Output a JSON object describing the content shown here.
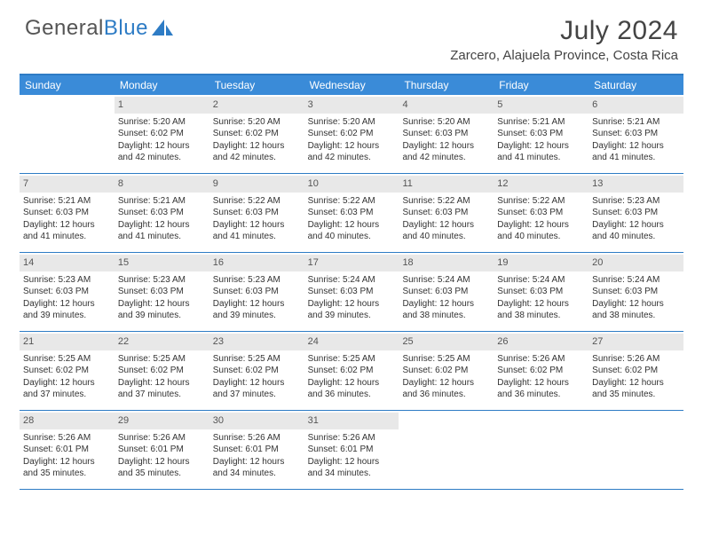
{
  "logo": {
    "text_gray": "General",
    "text_blue": "Blue"
  },
  "title": "July 2024",
  "location": "Zarcero, Alajuela Province, Costa Rica",
  "colors": {
    "header_bg": "#3a8bd8",
    "border": "#2e7cc5",
    "daynum_bg": "#e8e8e8",
    "text": "#333333",
    "title_text": "#444444"
  },
  "day_headers": [
    "Sunday",
    "Monday",
    "Tuesday",
    "Wednesday",
    "Thursday",
    "Friday",
    "Saturday"
  ],
  "weeks": [
    [
      null,
      {
        "n": "1",
        "sr": "Sunrise: 5:20 AM",
        "ss": "Sunset: 6:02 PM",
        "dl": "Daylight: 12 hours and 42 minutes."
      },
      {
        "n": "2",
        "sr": "Sunrise: 5:20 AM",
        "ss": "Sunset: 6:02 PM",
        "dl": "Daylight: 12 hours and 42 minutes."
      },
      {
        "n": "3",
        "sr": "Sunrise: 5:20 AM",
        "ss": "Sunset: 6:02 PM",
        "dl": "Daylight: 12 hours and 42 minutes."
      },
      {
        "n": "4",
        "sr": "Sunrise: 5:20 AM",
        "ss": "Sunset: 6:03 PM",
        "dl": "Daylight: 12 hours and 42 minutes."
      },
      {
        "n": "5",
        "sr": "Sunrise: 5:21 AM",
        "ss": "Sunset: 6:03 PM",
        "dl": "Daylight: 12 hours and 41 minutes."
      },
      {
        "n": "6",
        "sr": "Sunrise: 5:21 AM",
        "ss": "Sunset: 6:03 PM",
        "dl": "Daylight: 12 hours and 41 minutes."
      }
    ],
    [
      {
        "n": "7",
        "sr": "Sunrise: 5:21 AM",
        "ss": "Sunset: 6:03 PM",
        "dl": "Daylight: 12 hours and 41 minutes."
      },
      {
        "n": "8",
        "sr": "Sunrise: 5:21 AM",
        "ss": "Sunset: 6:03 PM",
        "dl": "Daylight: 12 hours and 41 minutes."
      },
      {
        "n": "9",
        "sr": "Sunrise: 5:22 AM",
        "ss": "Sunset: 6:03 PM",
        "dl": "Daylight: 12 hours and 41 minutes."
      },
      {
        "n": "10",
        "sr": "Sunrise: 5:22 AM",
        "ss": "Sunset: 6:03 PM",
        "dl": "Daylight: 12 hours and 40 minutes."
      },
      {
        "n": "11",
        "sr": "Sunrise: 5:22 AM",
        "ss": "Sunset: 6:03 PM",
        "dl": "Daylight: 12 hours and 40 minutes."
      },
      {
        "n": "12",
        "sr": "Sunrise: 5:22 AM",
        "ss": "Sunset: 6:03 PM",
        "dl": "Daylight: 12 hours and 40 minutes."
      },
      {
        "n": "13",
        "sr": "Sunrise: 5:23 AM",
        "ss": "Sunset: 6:03 PM",
        "dl": "Daylight: 12 hours and 40 minutes."
      }
    ],
    [
      {
        "n": "14",
        "sr": "Sunrise: 5:23 AM",
        "ss": "Sunset: 6:03 PM",
        "dl": "Daylight: 12 hours and 39 minutes."
      },
      {
        "n": "15",
        "sr": "Sunrise: 5:23 AM",
        "ss": "Sunset: 6:03 PM",
        "dl": "Daylight: 12 hours and 39 minutes."
      },
      {
        "n": "16",
        "sr": "Sunrise: 5:23 AM",
        "ss": "Sunset: 6:03 PM",
        "dl": "Daylight: 12 hours and 39 minutes."
      },
      {
        "n": "17",
        "sr": "Sunrise: 5:24 AM",
        "ss": "Sunset: 6:03 PM",
        "dl": "Daylight: 12 hours and 39 minutes."
      },
      {
        "n": "18",
        "sr": "Sunrise: 5:24 AM",
        "ss": "Sunset: 6:03 PM",
        "dl": "Daylight: 12 hours and 38 minutes."
      },
      {
        "n": "19",
        "sr": "Sunrise: 5:24 AM",
        "ss": "Sunset: 6:03 PM",
        "dl": "Daylight: 12 hours and 38 minutes."
      },
      {
        "n": "20",
        "sr": "Sunrise: 5:24 AM",
        "ss": "Sunset: 6:03 PM",
        "dl": "Daylight: 12 hours and 38 minutes."
      }
    ],
    [
      {
        "n": "21",
        "sr": "Sunrise: 5:25 AM",
        "ss": "Sunset: 6:02 PM",
        "dl": "Daylight: 12 hours and 37 minutes."
      },
      {
        "n": "22",
        "sr": "Sunrise: 5:25 AM",
        "ss": "Sunset: 6:02 PM",
        "dl": "Daylight: 12 hours and 37 minutes."
      },
      {
        "n": "23",
        "sr": "Sunrise: 5:25 AM",
        "ss": "Sunset: 6:02 PM",
        "dl": "Daylight: 12 hours and 37 minutes."
      },
      {
        "n": "24",
        "sr": "Sunrise: 5:25 AM",
        "ss": "Sunset: 6:02 PM",
        "dl": "Daylight: 12 hours and 36 minutes."
      },
      {
        "n": "25",
        "sr": "Sunrise: 5:25 AM",
        "ss": "Sunset: 6:02 PM",
        "dl": "Daylight: 12 hours and 36 minutes."
      },
      {
        "n": "26",
        "sr": "Sunrise: 5:26 AM",
        "ss": "Sunset: 6:02 PM",
        "dl": "Daylight: 12 hours and 36 minutes."
      },
      {
        "n": "27",
        "sr": "Sunrise: 5:26 AM",
        "ss": "Sunset: 6:02 PM",
        "dl": "Daylight: 12 hours and 35 minutes."
      }
    ],
    [
      {
        "n": "28",
        "sr": "Sunrise: 5:26 AM",
        "ss": "Sunset: 6:01 PM",
        "dl": "Daylight: 12 hours and 35 minutes."
      },
      {
        "n": "29",
        "sr": "Sunrise: 5:26 AM",
        "ss": "Sunset: 6:01 PM",
        "dl": "Daylight: 12 hours and 35 minutes."
      },
      {
        "n": "30",
        "sr": "Sunrise: 5:26 AM",
        "ss": "Sunset: 6:01 PM",
        "dl": "Daylight: 12 hours and 34 minutes."
      },
      {
        "n": "31",
        "sr": "Sunrise: 5:26 AM",
        "ss": "Sunset: 6:01 PM",
        "dl": "Daylight: 12 hours and 34 minutes."
      },
      null,
      null,
      null
    ]
  ]
}
